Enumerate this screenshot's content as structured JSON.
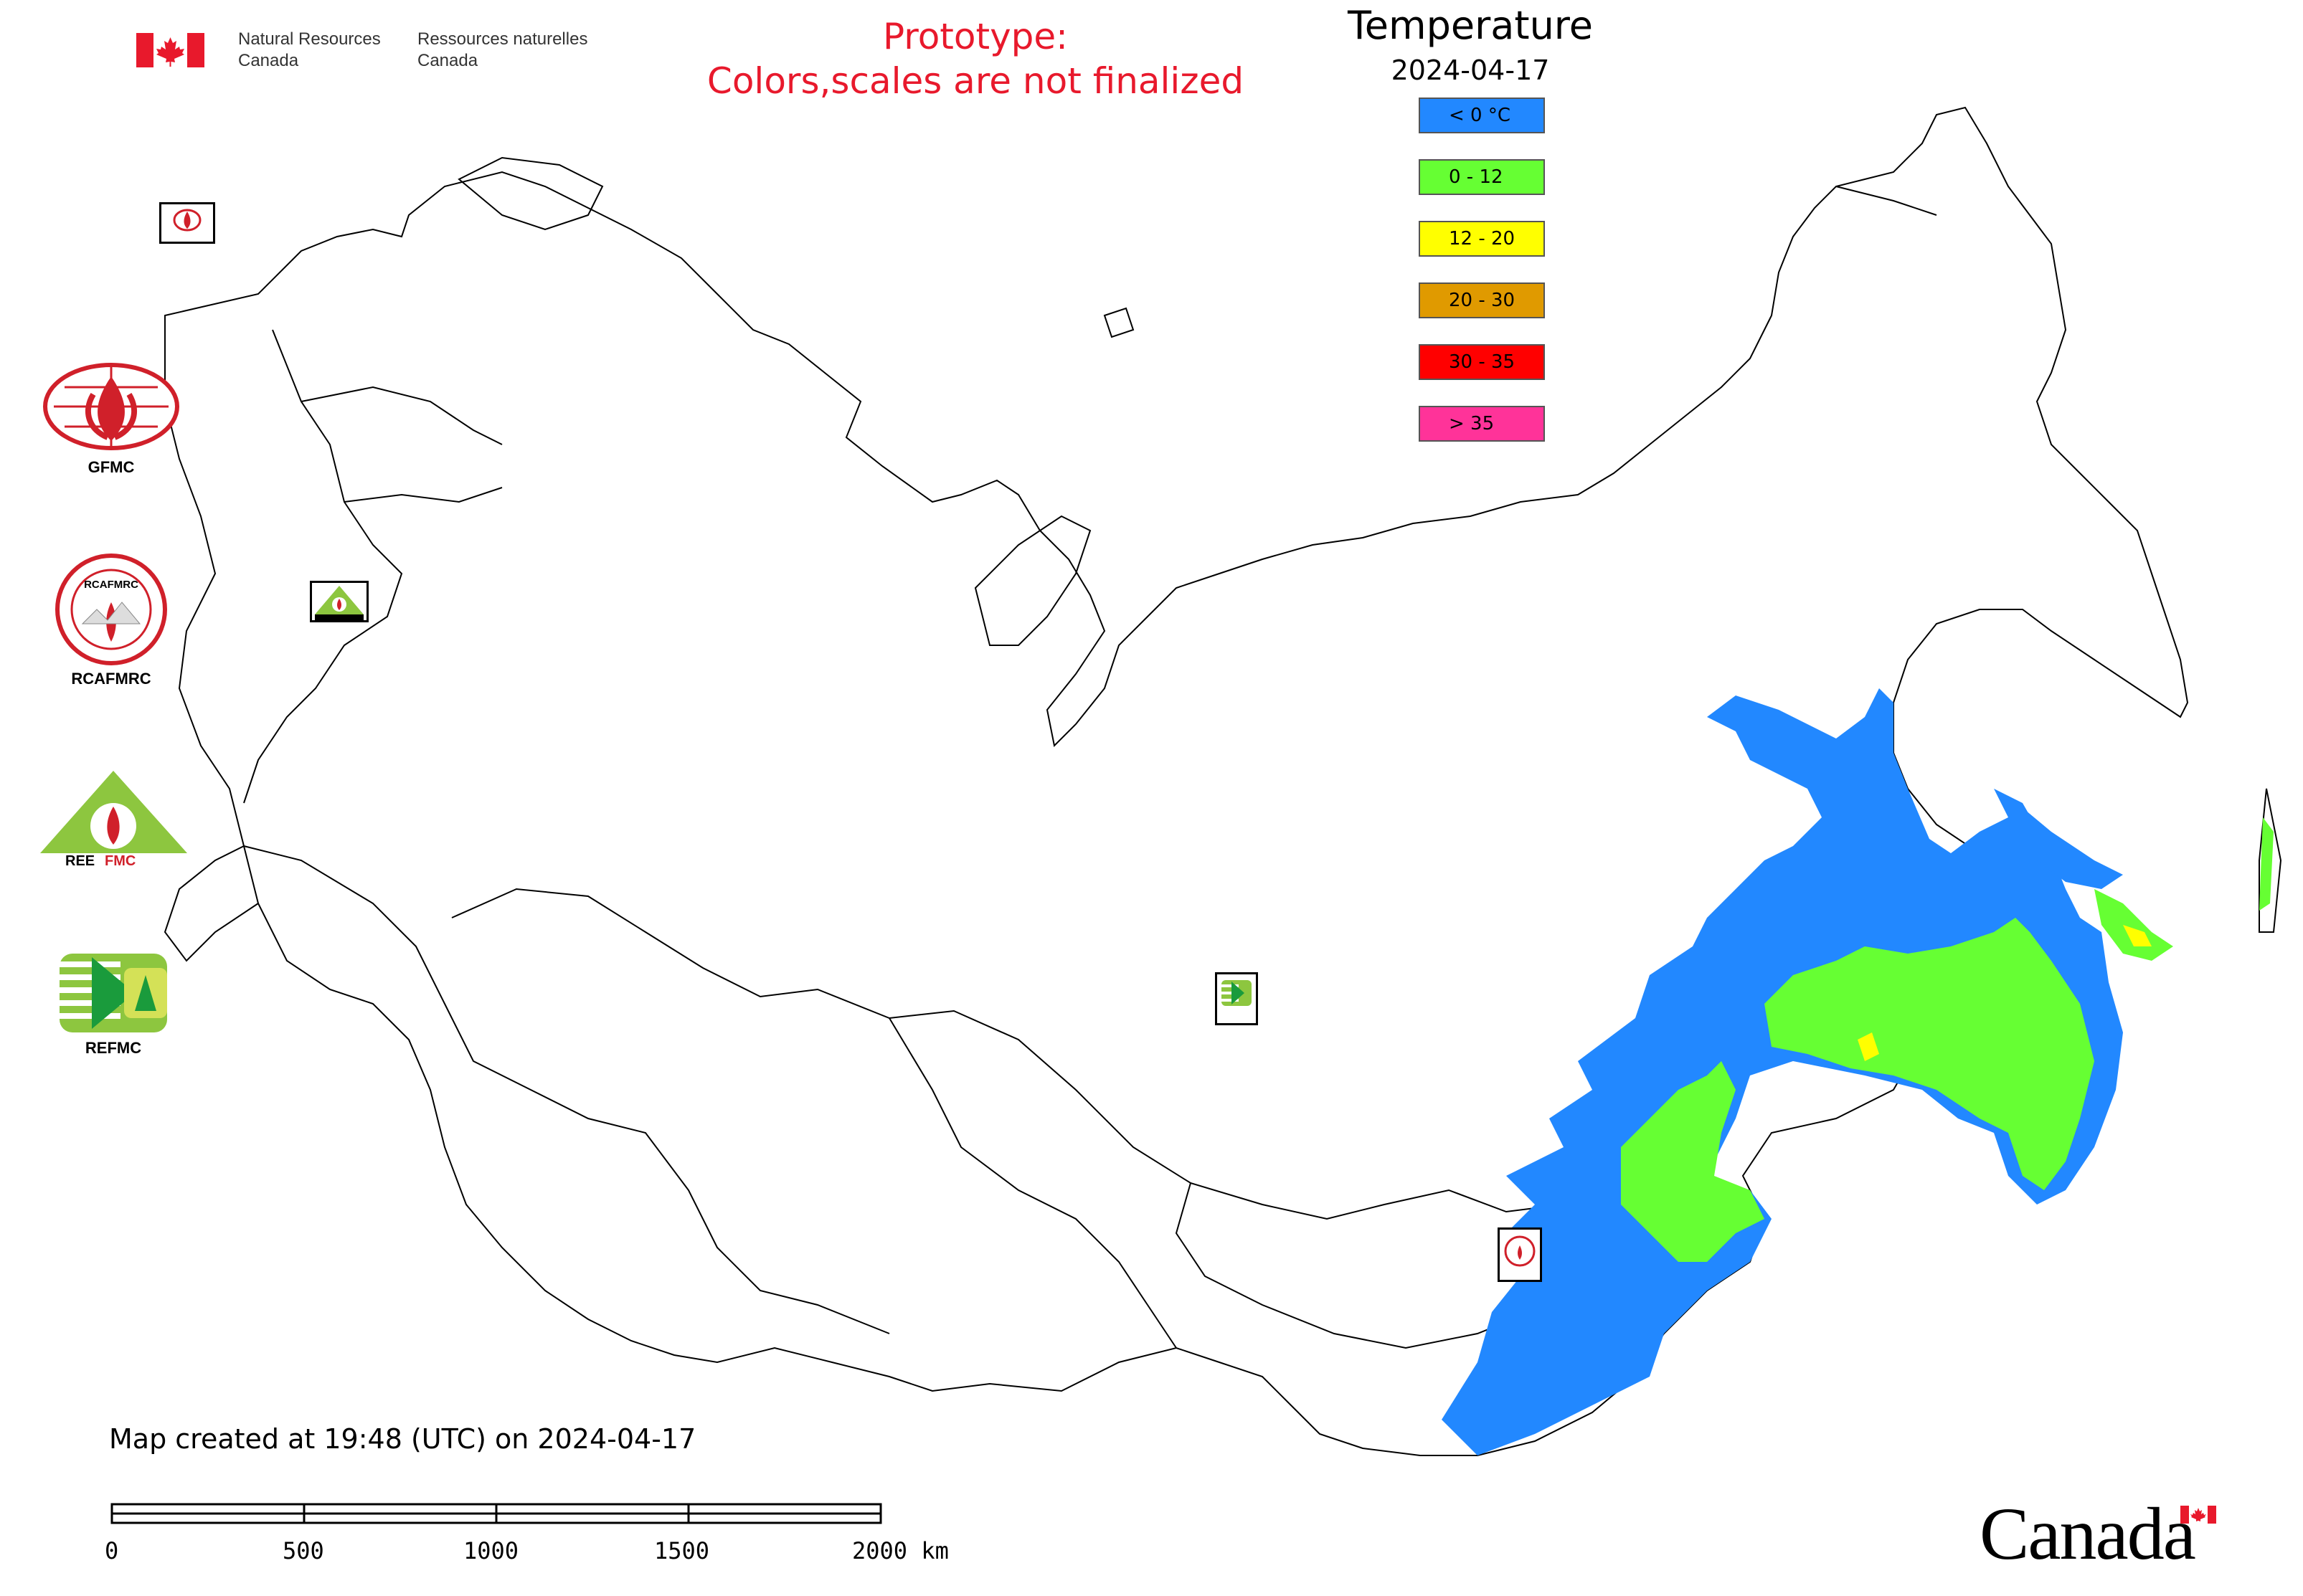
{
  "header": {
    "org_en": [
      "Natural Resources",
      "Canada"
    ],
    "org_fr": [
      "Ressources naturelles",
      "Canada"
    ]
  },
  "notice": {
    "line1": "Prototype:",
    "line2": "Colors,scales are not finalized"
  },
  "legend": {
    "title": "Temperature",
    "date": "2024-04-17",
    "items": [
      {
        "label": "< 0 °C",
        "color": "#2288ff"
      },
      {
        "label": "0 - 12",
        "color": "#66ff33"
      },
      {
        "label": "12 - 20",
        "color": "#ffff00"
      },
      {
        "label": "20 - 30",
        "color": "#e09a00"
      },
      {
        "label": "30 - 35",
        "color": "#ff0000"
      },
      {
        "label": "> 35",
        "color": "#ff3399"
      }
    ]
  },
  "partners": [
    {
      "name": "GFMC",
      "icon": "gfmc-logo"
    },
    {
      "name": "RCAFMRC",
      "icon": "rcafmrc-logo"
    },
    {
      "name": "REEFMC",
      "icon": "reefmc-logo"
    },
    {
      "name": "REFMC",
      "icon": "refmc-logo"
    }
  ],
  "map_markers": [
    {
      "label": "GFMC",
      "icon": "gfmc-marker"
    },
    {
      "label": "REEFMC",
      "icon": "reefmc-marker"
    },
    {
      "label": "REFMC",
      "icon": "refmc-marker"
    },
    {
      "label": "RCAFMRC",
      "icon": "rcafmrc-marker"
    }
  ],
  "footer": {
    "created": "Map created at 19:48 (UTC) on 2024-04-17",
    "scalebar": {
      "labels": [
        "0",
        "500",
        "1000",
        "1500",
        "2000 km"
      ]
    },
    "wordmark": "Canada"
  }
}
